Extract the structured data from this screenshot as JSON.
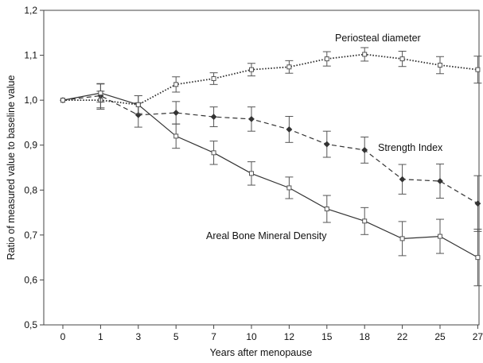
{
  "chart_data": {
    "type": "line",
    "xlabel": "Years after menopause",
    "ylabel": "Ratio of measured value to baseline value",
    "categories": [
      "0",
      "1",
      "3",
      "5",
      "7",
      "10",
      "12",
      "15",
      "18",
      "22",
      "25",
      "27"
    ],
    "yticks": [
      "0,5",
      "0,6",
      "0,7",
      "0,8",
      "0,9",
      "1,0",
      "1,1",
      "1,2"
    ],
    "ylim": [
      0.5,
      1.2
    ],
    "grid": false,
    "legend": "none",
    "series": [
      {
        "name": "Periosteal diameter",
        "style": "dotted",
        "marker": "open-square",
        "values": [
          1.0,
          1.0,
          0.99,
          1.035,
          1.048,
          1.068,
          1.074,
          1.092,
          1.102,
          1.092,
          1.078,
          1.068
        ],
        "err_low": [
          0,
          0.02,
          0.02,
          0.017,
          0.013,
          0.014,
          0.014,
          0.016,
          0.015,
          0.017,
          0.019,
          0.03
        ],
        "err_high": [
          0,
          0.02,
          0.02,
          0.017,
          0.013,
          0.014,
          0.014,
          0.016,
          0.015,
          0.017,
          0.019,
          0.03
        ]
      },
      {
        "name": "Strength Index",
        "style": "dashed",
        "marker": "filled-diamond",
        "values": [
          1.0,
          1.01,
          0.967,
          0.972,
          0.963,
          0.958,
          0.935,
          0.902,
          0.889,
          0.824,
          0.82,
          0.77
        ],
        "err_low": [
          0,
          0.027,
          0.027,
          0.025,
          0.022,
          0.027,
          0.029,
          0.029,
          0.029,
          0.033,
          0.038,
          0.062
        ],
        "err_high": [
          0,
          0.027,
          0.027,
          0.025,
          0.022,
          0.027,
          0.029,
          0.029,
          0.029,
          0.033,
          0.038,
          0.062
        ]
      },
      {
        "name": "Areal Bone Mineral Density",
        "style": "solid",
        "marker": "open-square",
        "values": [
          1.0,
          1.016,
          0.99,
          0.92,
          0.883,
          0.837,
          0.805,
          0.758,
          0.731,
          0.692,
          0.697,
          0.65
        ],
        "err_low": [
          0,
          0.02,
          0.02,
          0.027,
          0.026,
          0.026,
          0.024,
          0.03,
          0.03,
          0.038,
          0.038,
          0.063
        ],
        "err_high": [
          0,
          0.02,
          0.02,
          0.027,
          0.026,
          0.026,
          0.024,
          0.03,
          0.03,
          0.038,
          0.038,
          0.063
        ]
      }
    ],
    "annotations": [
      {
        "text": "Periosteal diameter",
        "series": 0
      },
      {
        "text": "Strength Index",
        "series": 1
      },
      {
        "text": "Areal Bone Mineral Density",
        "series": 2
      }
    ]
  }
}
